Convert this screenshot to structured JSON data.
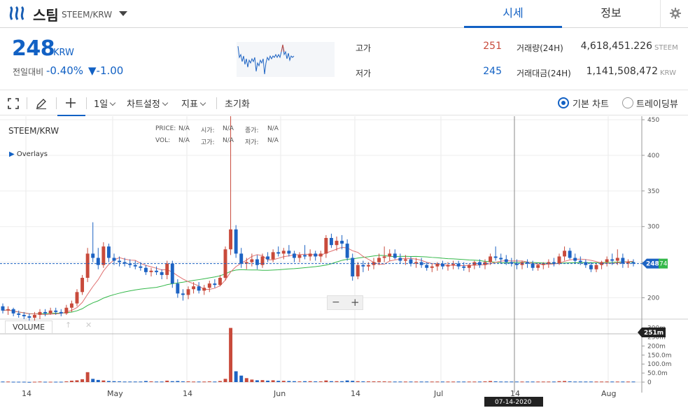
{
  "header": {
    "coin_name": "스팀",
    "coin_pair": "STEEM/KRW",
    "tabs": [
      {
        "label": "시세",
        "active": true
      },
      {
        "label": "정보",
        "active": false
      }
    ]
  },
  "summary": {
    "price": "248",
    "unit": "KRW",
    "change_label": "전일대비",
    "change_rate": "-0.40%",
    "change_amount": "▼-1.00",
    "high_label": "고가",
    "high_value": "251",
    "low_label": "저가",
    "low_value": "245",
    "volume_label": "거래량(24H)",
    "volume_value": "4,618,451.226",
    "volume_unit": "STEEM",
    "amount_label": "거래대금(24H)",
    "amount_value": "1,141,508,472",
    "amount_unit": "KRW"
  },
  "toolbar": {
    "period": "1일",
    "chart_settings": "차트설정",
    "indicators": "지표",
    "reset": "초기화",
    "basic_chart": "기본 차트",
    "tradingview": "트레이딩뷰"
  },
  "chart": {
    "symbol": "STEEM/KRW",
    "overlays": "Overlays",
    "legend": {
      "price": "PRICE:",
      "price_v": "N/A",
      "open": "시가:",
      "open_v": "N/A",
      "close": "종가:",
      "close_v": "N/A",
      "vol": "VOL:",
      "vol_v": "N/A",
      "high": "고가:",
      "high_v": "N/A",
      "low": "저가:",
      "low_v": "N/A"
    },
    "volume_label": "VOLUME",
    "current_price_tag": "248",
    "ma_tag": "74",
    "volume_tag": "251m",
    "crosshair_date": "07-14-2020",
    "zoom_minus": "−",
    "zoom_plus": "+"
  },
  "chart_data": {
    "type": "candlestick",
    "price_axis": {
      "ticks": [
        200,
        250,
        300,
        350,
        400,
        450
      ],
      "ylim": [
        170,
        455
      ]
    },
    "volume_axis": {
      "ticks": [
        "0",
        "50.0m",
        "100.0m",
        "150.0m",
        "200m",
        "250m",
        "300m"
      ]
    },
    "x_ticks": [
      "14",
      "May",
      "14",
      "Jun",
      "14",
      "Jul",
      "14",
      "Aug"
    ],
    "current_price": 248,
    "up_color": "#c84a3b",
    "down_color": "#1d63c3",
    "ma_short_color": "#e07070",
    "ma_long_color": "#34b84a",
    "candles": [
      [
        188,
        192,
        178,
        182
      ],
      [
        182,
        188,
        176,
        184
      ],
      [
        184,
        186,
        174,
        178
      ],
      [
        178,
        182,
        172,
        176
      ],
      [
        176,
        180,
        170,
        174
      ],
      [
        174,
        178,
        168,
        172
      ],
      [
        172,
        180,
        166,
        176
      ],
      [
        176,
        184,
        170,
        180
      ],
      [
        180,
        184,
        174,
        178
      ],
      [
        178,
        186,
        176,
        182
      ],
      [
        182,
        186,
        176,
        180
      ],
      [
        180,
        184,
        174,
        178
      ],
      [
        178,
        190,
        176,
        186
      ],
      [
        186,
        196,
        180,
        192
      ],
      [
        192,
        212,
        188,
        208
      ],
      [
        208,
        232,
        204,
        228
      ],
      [
        228,
        270,
        222,
        262
      ],
      [
        262,
        306,
        250,
        256
      ],
      [
        256,
        270,
        240,
        246
      ],
      [
        246,
        278,
        242,
        272
      ],
      [
        272,
        276,
        250,
        256
      ],
      [
        256,
        262,
        246,
        252
      ],
      [
        252,
        258,
        244,
        250
      ],
      [
        250,
        256,
        244,
        248
      ],
      [
        248,
        254,
        242,
        246
      ],
      [
        246,
        252,
        240,
        244
      ],
      [
        244,
        250,
        238,
        242
      ],
      [
        242,
        246,
        232,
        236
      ],
      [
        236,
        242,
        230,
        238
      ],
      [
        238,
        244,
        232,
        236
      ],
      [
        236,
        240,
        226,
        232
      ],
      [
        232,
        252,
        226,
        248
      ],
      [
        248,
        252,
        214,
        220
      ],
      [
        220,
        226,
        200,
        206
      ],
      [
        206,
        212,
        196,
        204
      ],
      [
        204,
        216,
        198,
        212
      ],
      [
        212,
        222,
        206,
        216
      ],
      [
        216,
        222,
        206,
        210
      ],
      [
        210,
        218,
        204,
        214
      ],
      [
        214,
        224,
        208,
        220
      ],
      [
        220,
        226,
        214,
        218
      ],
      [
        218,
        232,
        216,
        228
      ],
      [
        228,
        272,
        224,
        268
      ],
      [
        268,
        460,
        260,
        296
      ],
      [
        296,
        302,
        256,
        262
      ],
      [
        262,
        270,
        242,
        248
      ],
      [
        248,
        256,
        240,
        250
      ],
      [
        250,
        262,
        244,
        254
      ],
      [
        254,
        260,
        240,
        246
      ],
      [
        246,
        262,
        242,
        258
      ],
      [
        258,
        264,
        250,
        254
      ],
      [
        254,
        268,
        250,
        264
      ],
      [
        264,
        272,
        258,
        262
      ],
      [
        262,
        270,
        254,
        266
      ],
      [
        266,
        274,
        258,
        262
      ],
      [
        262,
        266,
        250,
        256
      ],
      [
        256,
        264,
        250,
        260
      ],
      [
        260,
        274,
        254,
        258
      ],
      [
        258,
        268,
        252,
        262
      ],
      [
        262,
        266,
        252,
        258
      ],
      [
        258,
        266,
        250,
        262
      ],
      [
        262,
        288,
        256,
        284
      ],
      [
        284,
        290,
        270,
        274
      ],
      [
        274,
        286,
        266,
        280
      ],
      [
        280,
        288,
        268,
        276
      ],
      [
        276,
        282,
        252,
        256
      ],
      [
        256,
        262,
        224,
        230
      ],
      [
        230,
        250,
        226,
        246
      ],
      [
        246,
        252,
        236,
        244
      ],
      [
        244,
        250,
        238,
        246
      ],
      [
        246,
        256,
        240,
        250
      ],
      [
        250,
        262,
        246,
        256
      ],
      [
        256,
        272,
        250,
        258
      ],
      [
        258,
        268,
        252,
        262
      ],
      [
        262,
        268,
        254,
        256
      ],
      [
        256,
        262,
        248,
        252
      ],
      [
        252,
        260,
        246,
        254
      ],
      [
        254,
        258,
        244,
        248
      ],
      [
        248,
        256,
        242,
        250
      ],
      [
        250,
        256,
        242,
        246
      ],
      [
        246,
        250,
        238,
        242
      ],
      [
        242,
        248,
        236,
        244
      ],
      [
        244,
        250,
        238,
        248
      ],
      [
        248,
        252,
        240,
        244
      ],
      [
        244,
        250,
        238,
        246
      ],
      [
        246,
        252,
        240,
        248
      ],
      [
        248,
        252,
        240,
        244
      ],
      [
        244,
        250,
        238,
        242
      ],
      [
        242,
        248,
        236,
        246
      ],
      [
        246,
        252,
        240,
        250
      ],
      [
        250,
        254,
        242,
        246
      ],
      [
        246,
        254,
        240,
        250
      ],
      [
        250,
        262,
        246,
        258
      ],
      [
        258,
        272,
        252,
        256
      ],
      [
        256,
        262,
        248,
        254
      ],
      [
        254,
        260,
        246,
        250
      ],
      [
        250,
        256,
        244,
        248
      ],
      [
        248,
        254,
        240,
        246
      ],
      [
        246,
        252,
        240,
        250
      ],
      [
        250,
        254,
        242,
        248
      ],
      [
        248,
        252,
        238,
        242
      ],
      [
        242,
        248,
        238,
        246
      ],
      [
        246,
        250,
        240,
        248
      ],
      [
        248,
        254,
        242,
        250
      ],
      [
        250,
        256,
        244,
        248
      ],
      [
        248,
        262,
        246,
        258
      ],
      [
        258,
        272,
        252,
        266
      ],
      [
        266,
        270,
        254,
        256
      ],
      [
        256,
        262,
        248,
        252
      ],
      [
        252,
        258,
        246,
        250
      ],
      [
        250,
        254,
        242,
        246
      ],
      [
        246,
        250,
        236,
        240
      ],
      [
        240,
        248,
        236,
        246
      ],
      [
        246,
        252,
        240,
        250
      ],
      [
        250,
        258,
        244,
        254
      ],
      [
        254,
        262,
        246,
        252
      ],
      [
        252,
        268,
        246,
        256
      ],
      [
        256,
        262,
        242,
        248
      ],
      [
        248,
        254,
        242,
        250
      ],
      [
        250,
        254,
        244,
        248
      ]
    ],
    "volumes": [
      3,
      3,
      2,
      2,
      2,
      1,
      2,
      3,
      2,
      2,
      2,
      2,
      4,
      8,
      10,
      16,
      55,
      18,
      12,
      9,
      6,
      5,
      4,
      3,
      3,
      3,
      3,
      6,
      4,
      3,
      3,
      8,
      5,
      6,
      4,
      4,
      3,
      3,
      3,
      4,
      3,
      6,
      18,
      300,
      60,
      36,
      22,
      14,
      10,
      11,
      8,
      10,
      7,
      7,
      6,
      5,
      4,
      5,
      5,
      4,
      4,
      9,
      5,
      5,
      5,
      9,
      7,
      5,
      4,
      4,
      4,
      4,
      4,
      3,
      3,
      3,
      3,
      3,
      3,
      3,
      3,
      3,
      3,
      3,
      3,
      3,
      3,
      3,
      3,
      3,
      3,
      4,
      6,
      4,
      3,
      3,
      3,
      3,
      3,
      3,
      3,
      3,
      3,
      3,
      3,
      5,
      6,
      4,
      3,
      3,
      3,
      3,
      3,
      3,
      3,
      3,
      3,
      3,
      3,
      3
    ]
  }
}
